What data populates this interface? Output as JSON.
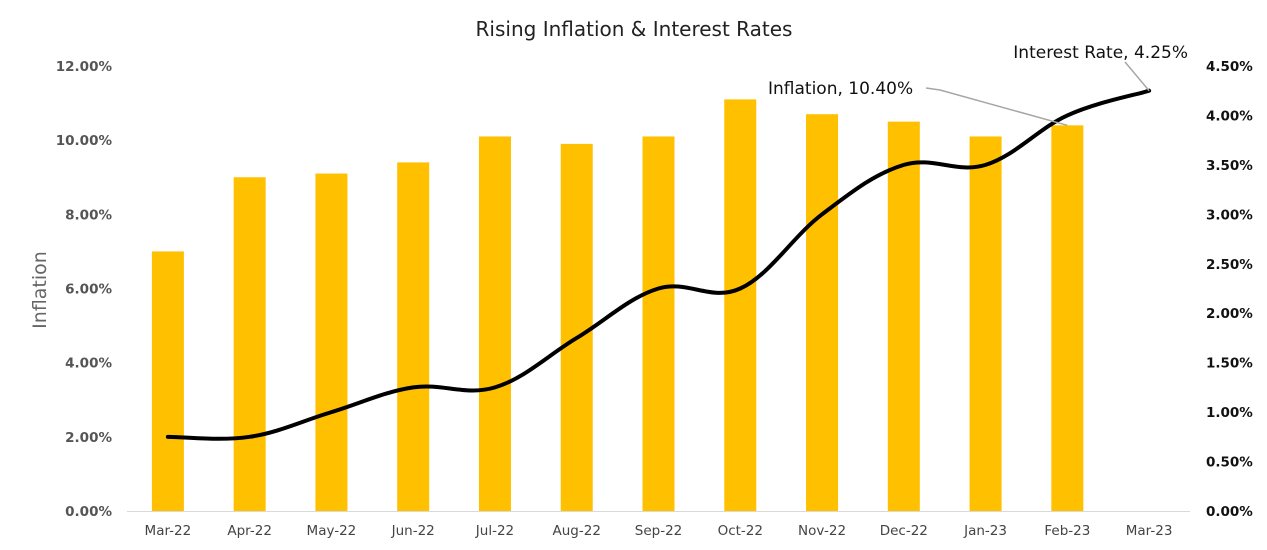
{
  "chart_data": {
    "type": "bar",
    "title": "Rising Inflation & Interest Rates",
    "ylabel": "Inflation",
    "y2label": "",
    "categories": [
      "Mar-22",
      "Apr-22",
      "May-22",
      "Jun-22",
      "Jul-22",
      "Aug-22",
      "Sep-22",
      "Oct-22",
      "Nov-22",
      "Dec-22",
      "Jan-23",
      "Feb-23",
      "Mar-23"
    ],
    "series": [
      {
        "name": "Inflation",
        "kind": "bar",
        "axis": "left",
        "color": "#FFC000",
        "values": [
          7.0,
          9.0,
          9.1,
          9.4,
          10.1,
          9.9,
          10.1,
          11.1,
          10.7,
          10.5,
          10.1,
          10.4,
          null
        ]
      },
      {
        "name": "Interest Rate",
        "kind": "line",
        "axis": "right",
        "color": "#000000",
        "values": [
          0.75,
          0.75,
          1.0,
          1.25,
          1.25,
          1.75,
          2.25,
          2.25,
          3.0,
          3.5,
          3.5,
          4.0,
          4.25
        ]
      }
    ],
    "ylim": [
      0,
      12
    ],
    "y2lim": [
      0,
      4.5
    ],
    "yticks": [
      "0.00%",
      "2.00%",
      "4.00%",
      "6.00%",
      "8.00%",
      "10.00%",
      "12.00%"
    ],
    "y2ticks": [
      "0.00%",
      "0.50%",
      "1.00%",
      "1.50%",
      "2.00%",
      "2.50%",
      "3.00%",
      "3.50%",
      "4.00%",
      "4.50%"
    ],
    "annotations": [
      {
        "text": "Interest Rate, 4.25%",
        "series": "Interest Rate",
        "category": "Mar-23"
      },
      {
        "text": "Inflation, 10.40%",
        "series": "Inflation",
        "category": "Feb-23"
      }
    ],
    "grid": false,
    "legend": "none"
  }
}
